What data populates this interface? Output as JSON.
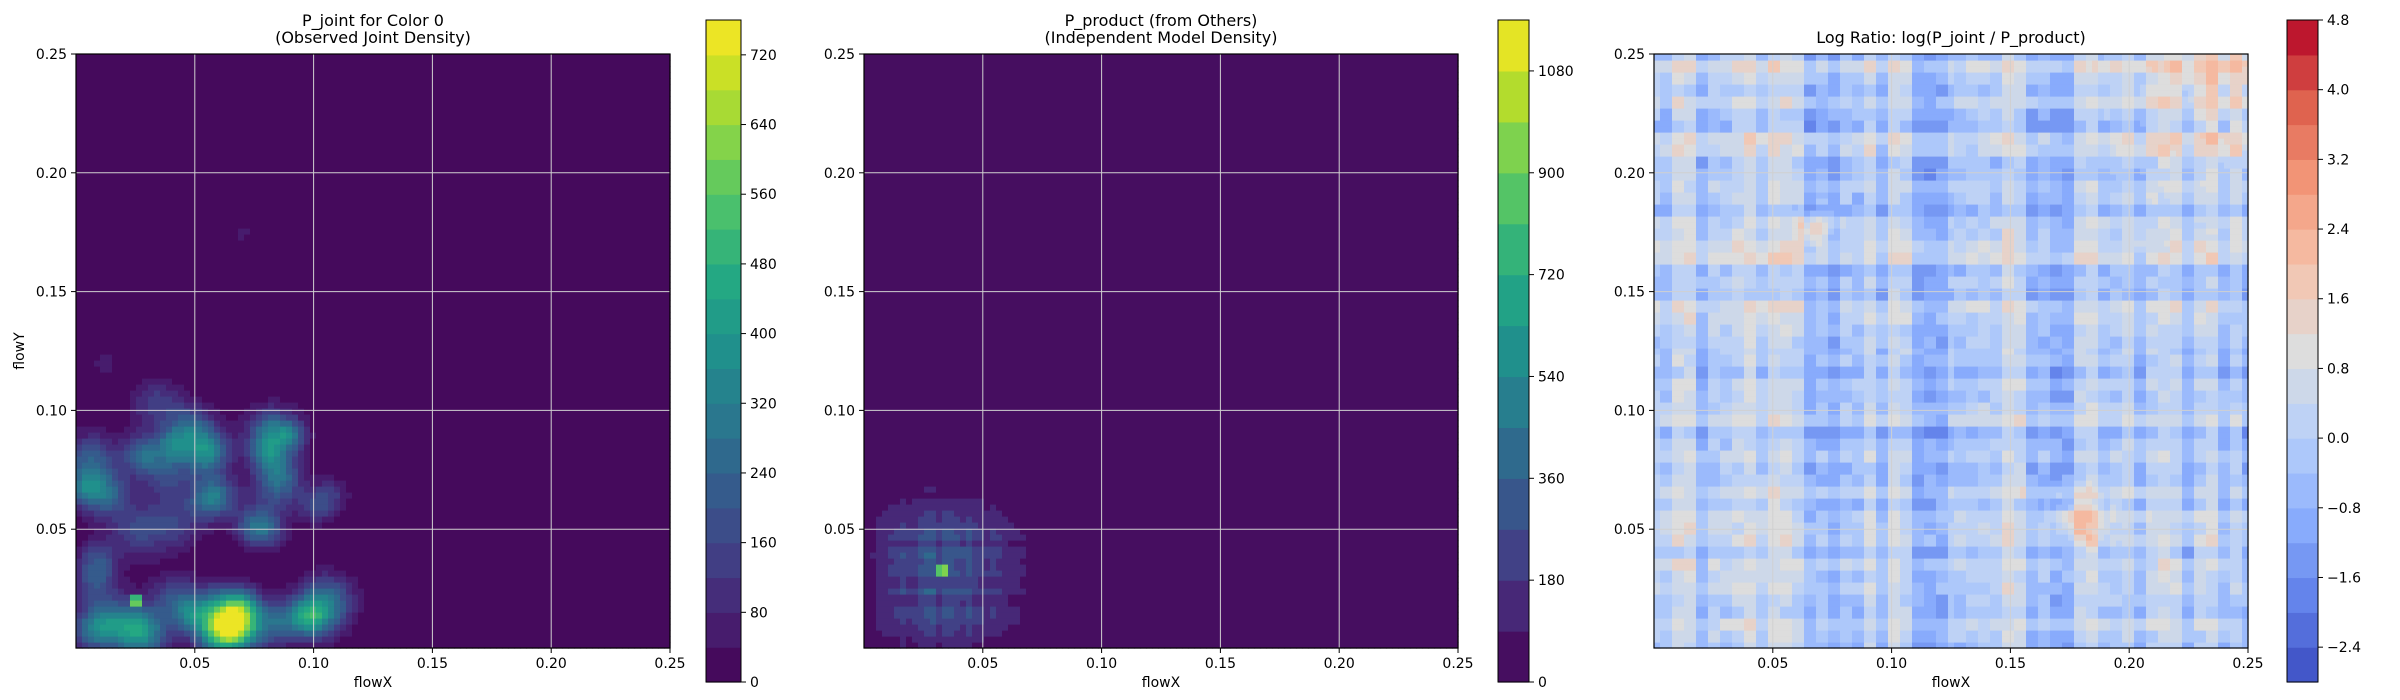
{
  "chart_data": [
    {
      "type": "heatmap",
      "title_line1": "P_joint for Color 0",
      "title_line2": "(Observed Joint Density)",
      "xlabel": "flowX",
      "ylabel": "flowY",
      "xlim": [
        0.0,
        0.25
      ],
      "ylim": [
        0.0,
        0.25
      ],
      "xticks": [
        "0.05",
        "0.10",
        "0.15",
        "0.20",
        "0.25"
      ],
      "yticks": [
        "0.05",
        "0.10",
        "0.15",
        "0.20",
        "0.25"
      ],
      "grid": true,
      "colormap": "viridis",
      "colorbar_range": [
        0,
        760
      ],
      "colorbar_ticks": [
        "0",
        "80",
        "160",
        "240",
        "320",
        "400",
        "480",
        "560",
        "640",
        "720"
      ],
      "colorbar_tick_values": [
        0,
        80,
        160,
        240,
        320,
        400,
        480,
        560,
        640,
        720
      ],
      "peak": {
        "x": 0.025,
        "y": 0.02,
        "value": 740
      }
    },
    {
      "type": "heatmap",
      "title_line1": "P_product (from Others)",
      "title_line2": "(Independent Model Density)",
      "xlabel": "flowX",
      "ylabel": "",
      "xlim": [
        0.0,
        0.25
      ],
      "ylim": [
        0.0,
        0.25
      ],
      "xticks": [
        "0.05",
        "0.10",
        "0.15",
        "0.20",
        "0.25"
      ],
      "yticks": [
        "0.05",
        "0.10",
        "0.15",
        "0.20",
        "0.25"
      ],
      "grid": true,
      "colormap": "viridis",
      "colorbar_range": [
        0,
        1170
      ],
      "colorbar_ticks": [
        "0",
        "180",
        "360",
        "540",
        "720",
        "900",
        "1080"
      ],
      "colorbar_tick_values": [
        0,
        180,
        360,
        540,
        720,
        900,
        1080
      ],
      "peak": {
        "x": 0.033,
        "y": 0.033,
        "value": 1150
      }
    },
    {
      "type": "heatmap",
      "title_line1": "Log Ratio: log(P_joint / P_product)",
      "title_line2": "",
      "xlabel": "flowX",
      "ylabel": "",
      "xlim": [
        0.0,
        0.25
      ],
      "ylim": [
        0.0,
        0.25
      ],
      "xticks": [
        "0.05",
        "0.10",
        "0.15",
        "0.20",
        "0.25"
      ],
      "yticks": [
        "0.05",
        "0.10",
        "0.15",
        "0.20",
        "0.25"
      ],
      "grid": true,
      "colormap": "coolwarm",
      "colorbar_range": [
        -2.8,
        4.8
      ],
      "colorbar_ticks": [
        "−2.4",
        "−1.6",
        "−0.8",
        "0.0",
        "0.8",
        "1.6",
        "2.4",
        "3.2",
        "4.0",
        "4.8"
      ],
      "colorbar_tick_values": [
        -2.4,
        -1.6,
        -0.8,
        0.0,
        0.8,
        1.6,
        2.4,
        3.2,
        4.0,
        4.8
      ]
    }
  ]
}
